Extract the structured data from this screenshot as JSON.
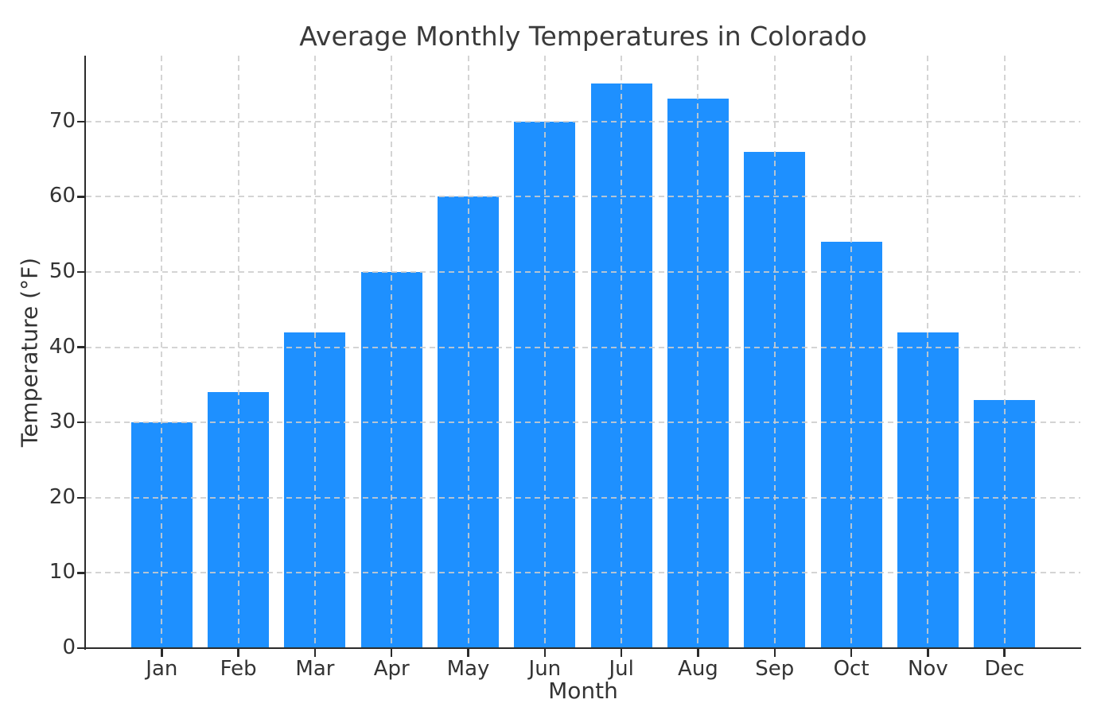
{
  "chart_data": {
    "type": "bar",
    "title": "Average Monthly Temperatures in Colorado",
    "xlabel": "Month",
    "ylabel": "Temperature (°F)",
    "categories": [
      "Jan",
      "Feb",
      "Mar",
      "Apr",
      "May",
      "Jun",
      "Jul",
      "Aug",
      "Sep",
      "Oct",
      "Nov",
      "Dec"
    ],
    "values": [
      30,
      34,
      42,
      50,
      60,
      70,
      75,
      73,
      66,
      54,
      42,
      33
    ],
    "ylim": [
      0,
      78.75
    ],
    "yticks": [
      0,
      10,
      20,
      30,
      40,
      50,
      60,
      70
    ],
    "bar_color": "#1E90FF",
    "grid": true,
    "grid_color": "#cdcdcd",
    "grid_style": "dashed",
    "grid_on_top": true,
    "axis_color": "#2b2b2b",
    "text_color": "#333333",
    "title_color": "#3a3a3a",
    "legend": "none"
  }
}
